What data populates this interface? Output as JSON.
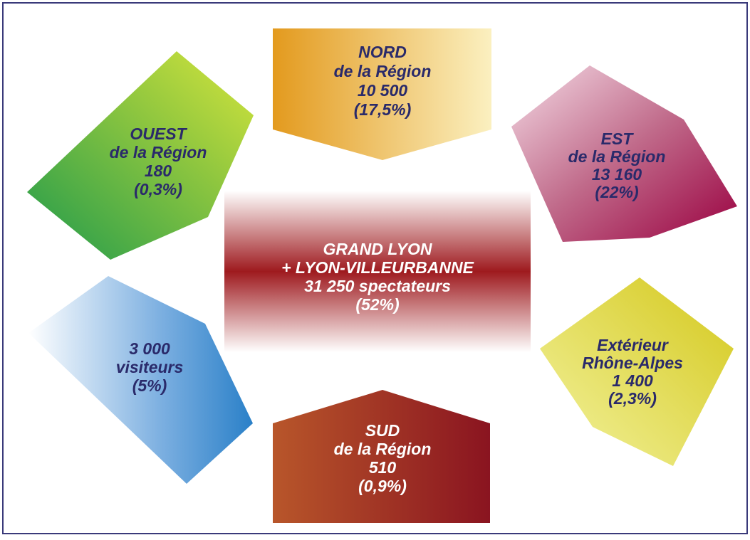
{
  "nodes": [
    {
      "lines": [
        "NORD",
        "de la Région",
        "10 500",
        "(17,5%)"
      ]
    },
    {
      "lines": [
        "OUEST",
        "de la Région",
        "180",
        "(0,3%)"
      ]
    },
    {
      "lines": [
        "EST",
        "de la Région",
        "13 160",
        "(22%)"
      ]
    },
    {
      "lines": [
        "GRAND LYON",
        "+ LYON-VILLEURBANNE",
        "31 250 spectateurs",
        "(52%)"
      ]
    },
    {
      "lines": [
        "3 000",
        "visiteurs",
        "(5%)"
      ]
    },
    {
      "lines": [
        "Extérieur",
        "Rhône-Alpes",
        "1 400",
        "(2,3%)"
      ]
    },
    {
      "lines": [
        "SUD",
        "de la Région",
        "510",
        "(0,9%)"
      ]
    }
  ]
}
